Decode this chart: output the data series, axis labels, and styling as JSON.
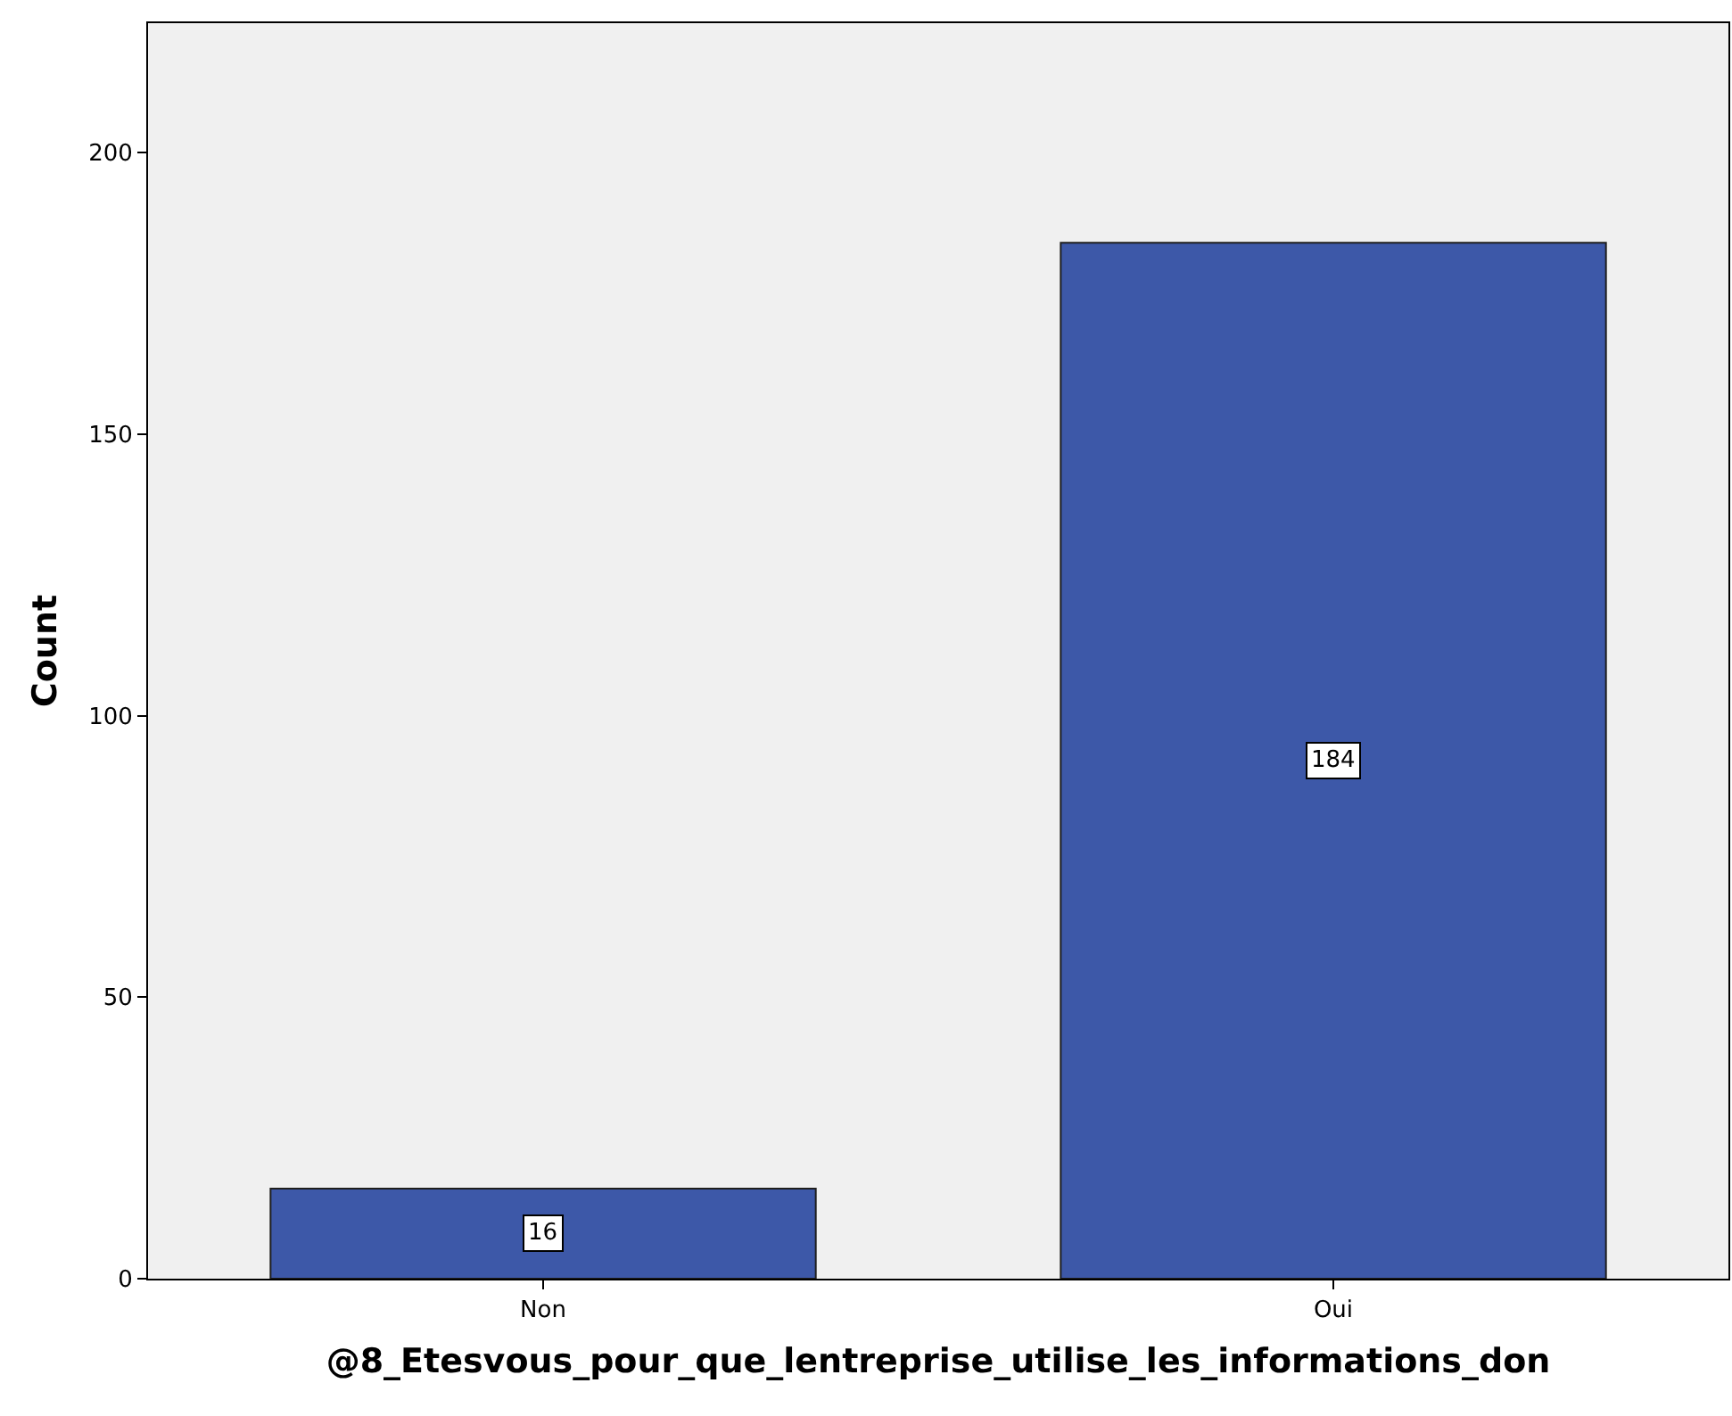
{
  "chart_data": {
    "type": "bar",
    "xlabel": "@8_Etesvous_pour_que_lentreprise_utilise_les_informations_don",
    "ylabel": "Count",
    "categories": [
      "Non",
      "Oui"
    ],
    "values": [
      16,
      184
    ],
    "color": "#3d58a8",
    "ylim": [
      0,
      223
    ],
    "yticks": [
      0,
      50,
      100,
      150,
      200
    ],
    "grid": false,
    "legend": false,
    "data_labels": true
  }
}
